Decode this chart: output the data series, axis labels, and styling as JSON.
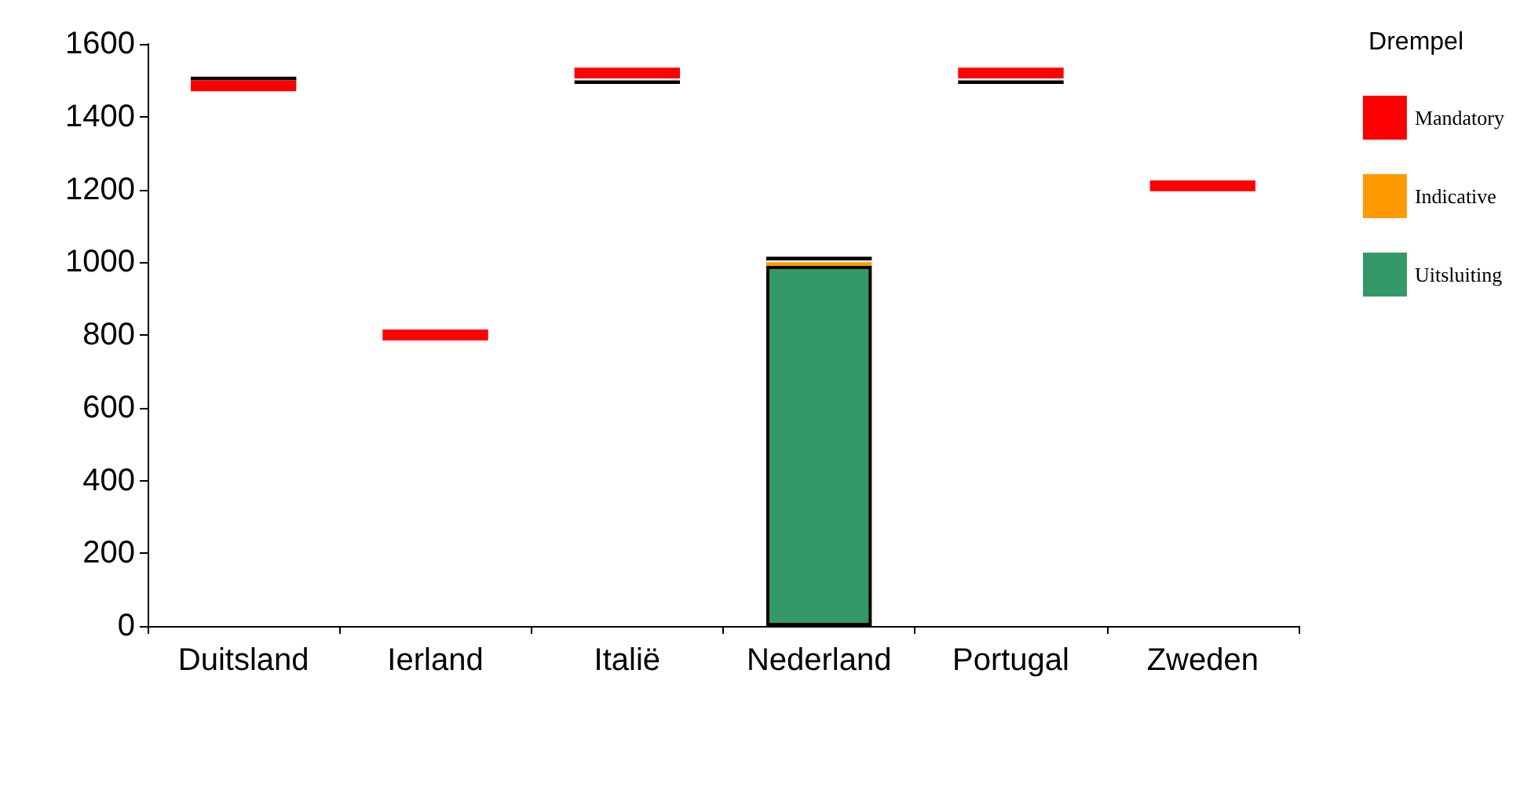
{
  "chart_data": {
    "type": "bar",
    "legend_title": "Drempel",
    "categories": [
      "Duitsland",
      "Ierland",
      "Italië",
      "Nederland",
      "Portugal",
      "Zweden"
    ],
    "series": [
      {
        "name": "Uitsluiting",
        "color": "#339966",
        "base": [
          null,
          null,
          null,
          0,
          null,
          null
        ],
        "values": [
          null,
          null,
          null,
          990,
          null,
          null
        ]
      },
      {
        "name": "Indicative",
        "color": "#ff9900",
        "base": [
          null,
          null,
          null,
          990,
          null,
          null
        ],
        "values": [
          null,
          null,
          null,
          10,
          null,
          null
        ]
      },
      {
        "color": "#000000",
        "base": [
          1500,
          null,
          1490,
          1005,
          1490,
          null
        ],
        "values": [
          10,
          null,
          10,
          10,
          10,
          null
        ]
      },
      {
        "name": "Mandatory",
        "color": "#ff0000",
        "base": [
          1470,
          785,
          1505,
          null,
          1505,
          1195
        ],
        "values": [
          30,
          30,
          30,
          null,
          30,
          30
        ]
      }
    ],
    "ylim": [
      0,
      1600
    ],
    "yticks": [
      0,
      200,
      400,
      600,
      800,
      1000,
      1200,
      1400,
      1600
    ],
    "legend": "top right",
    "grid": false
  }
}
